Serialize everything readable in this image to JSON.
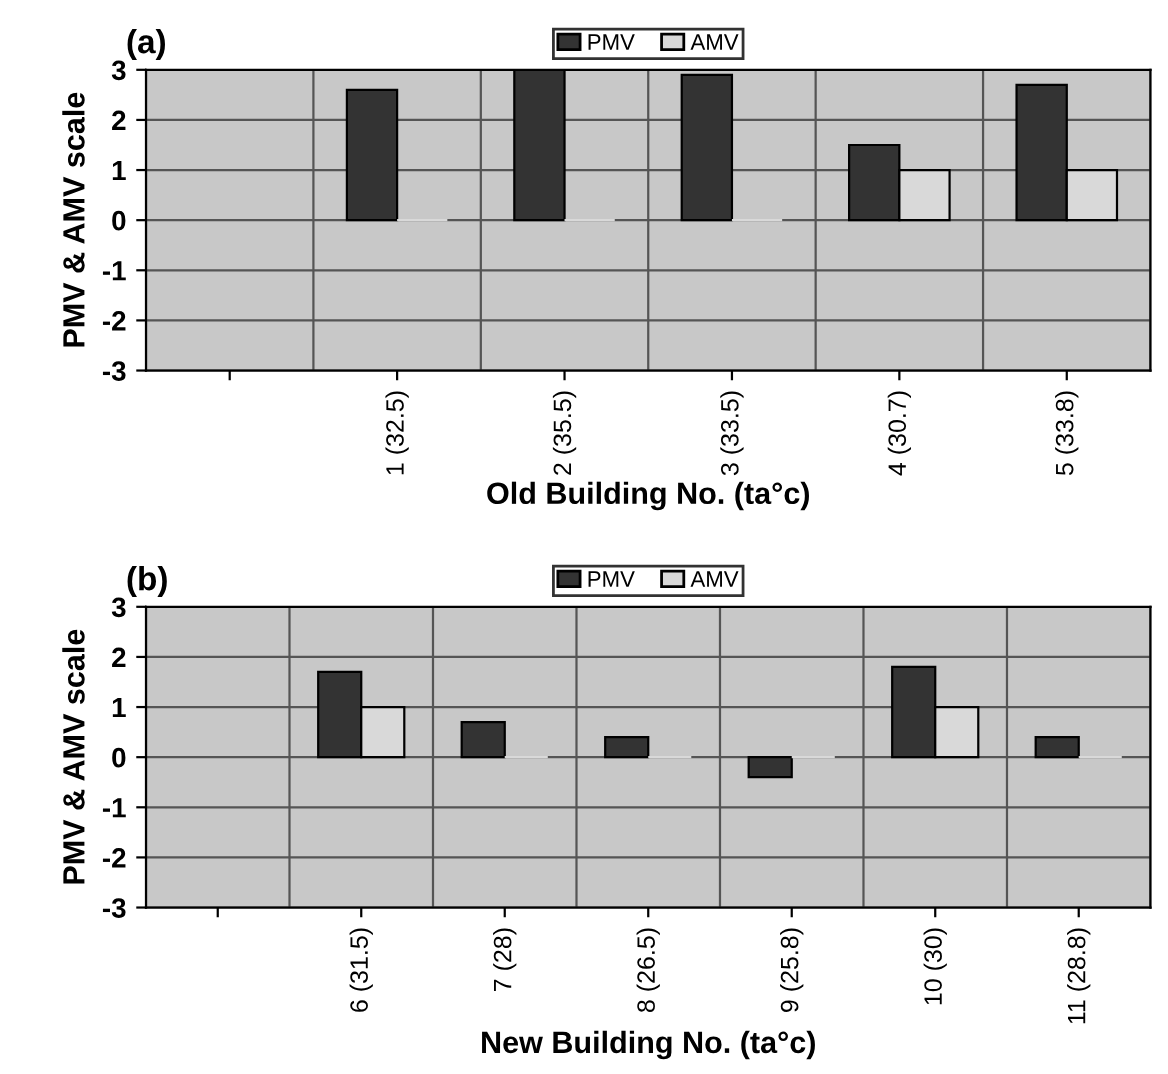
{
  "chart_data": [
    {
      "type": "bar",
      "title": "(a)",
      "xlabel": "Old Building No. (ta°c)",
      "ylabel": "PMV & AMV scale",
      "categories": [
        null,
        "1 (32.5)",
        "2 (35.5)",
        "3 (33.5)",
        "4 (30.7)",
        "5 (33.8)"
      ],
      "series": [
        {
          "name": "PMV",
          "color": "#333333",
          "values": [
            null,
            2.6,
            3,
            2.9,
            1.5,
            2.7
          ]
        },
        {
          "name": "AMV",
          "color": "#d9d9d9",
          "values": [
            null,
            0,
            0,
            0,
            1,
            1
          ]
        }
      ],
      "ylim": [
        -3,
        3
      ],
      "yticks": [
        -3,
        -2,
        -1,
        0,
        1,
        2,
        3
      ],
      "grid": true,
      "legend": "top"
    },
    {
      "type": "bar",
      "title": "(b)",
      "xlabel": "New Building No. (ta°c)",
      "ylabel": "PMV & AMV scale",
      "categories": [
        null,
        "6 (31.5)",
        "7 (28)",
        "8 (26.5)",
        "9 (25.8)",
        "10 (30)",
        "11 (28.8)"
      ],
      "series": [
        {
          "name": "PMV",
          "color": "#333333",
          "values": [
            null,
            1.7,
            0.7,
            0.4,
            -0.4,
            1.8,
            0.4
          ]
        },
        {
          "name": "AMV",
          "color": "#d9d9d9",
          "values": [
            null,
            1,
            0,
            0,
            0,
            1,
            0
          ]
        }
      ],
      "ylim": [
        -3,
        3
      ],
      "yticks": [
        -3,
        -2,
        -1,
        0,
        1,
        2,
        3
      ],
      "grid": true,
      "legend": "top"
    }
  ]
}
